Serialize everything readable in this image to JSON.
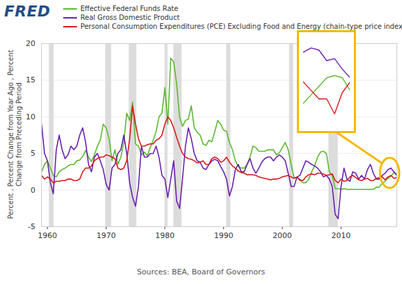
{
  "chart_data": [
    {
      "type": "line",
      "logo": "FRED",
      "ylabel": "Percent , Percent Change from Year Ago , Percent Change from Preceding Period",
      "source": "Sources: BEA, Board of Governors",
      "legend": "top",
      "grid": true,
      "xlim": [
        1959,
        2019.5
      ],
      "xticks": [
        1960,
        1970,
        1980,
        1990,
        2000,
        2010
      ],
      "ylim": [
        -5,
        20
      ],
      "yticks": [
        -5,
        0,
        5,
        10,
        15,
        20
      ],
      "recessions": [
        [
          1960.3,
          1961.1
        ],
        [
          1969.9,
          1970.9
        ],
        [
          1973.9,
          1975.2
        ],
        [
          1980.0,
          1980.5
        ],
        [
          1981.5,
          1982.9
        ],
        [
          1990.5,
          1991.2
        ],
        [
          2001.2,
          2001.9
        ],
        [
          2007.9,
          2009.5
        ]
      ],
      "x": [
        1959,
        1959.5,
        1960,
        1960.5,
        1961,
        1961.5,
        1962,
        1962.5,
        1963,
        1963.5,
        1964,
        1964.5,
        1965,
        1965.5,
        1966,
        1966.5,
        1967,
        1967.5,
        1968,
        1968.5,
        1969,
        1969.5,
        1970,
        1970.5,
        1971,
        1971.5,
        1972,
        1972.5,
        1973,
        1973.5,
        1974,
        1974.5,
        1975,
        1975.5,
        1976,
        1976.5,
        1977,
        1977.5,
        1978,
        1978.5,
        1979,
        1979.5,
        1980,
        1980.5,
        1981,
        1981.5,
        1982,
        1982.5,
        1983,
        1983.5,
        1984,
        1984.5,
        1985,
        1985.5,
        1986,
        1986.5,
        1987,
        1987.5,
        1988,
        1988.5,
        1989,
        1989.5,
        1990,
        1990.5,
        1991,
        1991.5,
        1992,
        1992.5,
        1993,
        1993.5,
        1994,
        1994.5,
        1995,
        1995.5,
        1996,
        1996.5,
        1997,
        1997.5,
        1998,
        1998.5,
        1999,
        1999.5,
        2000,
        2000.5,
        2001,
        2001.5,
        2002,
        2002.5,
        2003,
        2003.5,
        2004,
        2004.5,
        2005,
        2005.5,
        2006,
        2006.5,
        2007,
        2007.5,
        2008,
        2008.5,
        2009,
        2009.5,
        2010,
        2010.5,
        2011,
        2011.5,
        2012,
        2012.5,
        2013,
        2013.5,
        2014,
        2014.5,
        2015,
        2015.5,
        2016,
        2016.5,
        2017,
        2017.5,
        2018,
        2018.5,
        2019,
        2019.5
      ],
      "series": [
        {
          "name": "Effective Federal Funds Rate",
          "color": "#5cb82e",
          "values": [
            2.5,
            3.5,
            4.0,
            3.0,
            2.0,
            1.8,
            2.5,
            2.8,
            3.0,
            3.3,
            3.5,
            3.5,
            4.0,
            4.1,
            4.6,
            5.4,
            4.5,
            3.9,
            4.8,
            6.0,
            6.8,
            9.0,
            8.5,
            7.0,
            4.0,
            5.5,
            3.5,
            4.5,
            6.5,
            10.5,
            9.5,
            12.0,
            6.3,
            6.0,
            4.8,
            5.2,
            4.7,
            5.8,
            6.8,
            8.0,
            10.0,
            10.5,
            14.0,
            9.0,
            18.0,
            17.5,
            14.5,
            10.0,
            8.7,
            9.5,
            9.7,
            11.5,
            8.5,
            7.9,
            7.5,
            6.3,
            6.1,
            6.8,
            6.6,
            8.0,
            9.5,
            9.0,
            8.2,
            8.0,
            6.5,
            5.5,
            4.0,
            3.2,
            3.0,
            3.0,
            3.5,
            4.5,
            6.0,
            5.8,
            5.3,
            5.3,
            5.3,
            5.5,
            5.5,
            5.5,
            4.8,
            5.1,
            5.8,
            6.5,
            5.5,
            3.5,
            1.7,
            1.7,
            1.3,
            1.0,
            1.0,
            1.5,
            2.5,
            3.3,
            4.5,
            5.2,
            5.3,
            5.0,
            2.5,
            2.0,
            0.2,
            0.2,
            0.1,
            0.2,
            0.1,
            0.1,
            0.1,
            0.1,
            0.1,
            0.1,
            0.1,
            0.1,
            0.1,
            0.1,
            0.4,
            0.4,
            0.9,
            1.2,
            1.6,
            1.9,
            2.4,
            2.2
          ]
        },
        {
          "name": "Real Gross Domestic Product",
          "color": "#6a1fb0",
          "values": [
            9.0,
            5.0,
            4.0,
            1.0,
            -0.5,
            5.5,
            7.5,
            5.5,
            4.3,
            4.8,
            6.0,
            5.5,
            6.0,
            7.5,
            8.5,
            6.5,
            3.5,
            2.5,
            4.5,
            5.0,
            4.0,
            2.8,
            0.8,
            0.0,
            3.0,
            3.5,
            5.0,
            5.5,
            7.5,
            5.0,
            1.0,
            -1.0,
            -2.2,
            0.5,
            6.0,
            4.5,
            4.5,
            5.0,
            5.0,
            6.0,
            4.5,
            2.0,
            1.5,
            -1.0,
            1.5,
            4.0,
            -1.5,
            -2.5,
            1.5,
            6.0,
            8.5,
            7.0,
            5.0,
            4.0,
            3.8,
            3.0,
            2.8,
            3.5,
            4.0,
            4.2,
            4.0,
            3.2,
            2.5,
            1.5,
            -0.8,
            0.5,
            2.8,
            3.5,
            2.5,
            2.5,
            3.5,
            4.3,
            3.0,
            2.3,
            3.0,
            3.8,
            4.3,
            4.5,
            4.5,
            4.0,
            4.5,
            4.8,
            4.5,
            4.0,
            2.3,
            0.5,
            0.5,
            1.8,
            2.0,
            3.0,
            4.0,
            3.8,
            3.5,
            3.3,
            3.0,
            2.5,
            1.8,
            2.0,
            1.5,
            0.5,
            -3.3,
            -3.9,
            0.5,
            3.0,
            1.5,
            1.2,
            2.5,
            2.3,
            1.5,
            2.0,
            1.5,
            2.8,
            3.5,
            2.3,
            1.5,
            1.5,
            2.0,
            2.3,
            2.8,
            3.0,
            2.5,
            2.0
          ]
        },
        {
          "name": "Personal Consumption Expenditures (PCE) Excluding Food and Energy (chain-type price index)",
          "color": "#d7191c",
          "values": [
            2.0,
            1.5,
            1.8,
            1.5,
            1.0,
            1.2,
            1.2,
            1.3,
            1.3,
            1.5,
            1.5,
            1.3,
            1.3,
            1.5,
            2.5,
            3.0,
            3.0,
            3.3,
            4.0,
            4.3,
            4.5,
            4.5,
            4.8,
            4.7,
            4.5,
            4.3,
            3.0,
            2.8,
            3.0,
            4.0,
            7.0,
            11.5,
            9.0,
            7.0,
            6.0,
            6.0,
            6.2,
            6.3,
            6.3,
            6.8,
            7.0,
            7.5,
            9.0,
            10.0,
            9.5,
            8.5,
            7.2,
            6.0,
            5.0,
            4.5,
            4.3,
            4.2,
            4.0,
            3.7,
            3.8,
            4.0,
            3.5,
            3.5,
            4.3,
            4.5,
            4.3,
            3.8,
            4.0,
            4.5,
            3.8,
            3.3,
            3.0,
            2.6,
            2.4,
            2.3,
            2.1,
            2.1,
            2.1,
            2.0,
            1.8,
            1.7,
            1.6,
            1.5,
            1.4,
            1.5,
            1.5,
            1.6,
            1.8,
            1.9,
            2.0,
            1.8,
            1.6,
            1.8,
            1.4,
            1.3,
            1.8,
            2.1,
            2.2,
            2.1,
            2.3,
            2.3,
            2.2,
            2.0,
            2.1,
            2.2,
            1.3,
            1.0,
            1.5,
            1.2,
            1.3,
            1.8,
            2.0,
            1.7,
            1.4,
            1.3,
            1.5,
            1.6,
            1.3,
            1.3,
            1.6,
            1.7,
            1.8,
            1.4,
            1.8,
            2.0,
            1.6,
            1.7
          ]
        }
      ]
    },
    {
      "type": "line",
      "tick_labels": false,
      "xlim": [
        2018,
        2019.5
      ],
      "ylim": [
        1.3,
        3.3
      ],
      "x": [
        2018,
        2018.25,
        2018.5,
        2018.75,
        2019,
        2019.25,
        2019.5
      ],
      "series": [
        {
          "name": "Effective Federal Funds Rate",
          "color": "#5cb82e",
          "values": [
            1.8,
            2.0,
            2.2,
            2.4,
            2.45,
            2.4,
            2.1
          ]
        },
        {
          "name": "Real Gross Domestic Product",
          "color": "#6a1fb0",
          "values": [
            3.0,
            3.1,
            3.05,
            2.8,
            2.85,
            2.6,
            2.4
          ]
        },
        {
          "name": "Personal Consumption Expenditures (PCE) Excluding Food and Energy (chain-type price index)",
          "color": "#d7191c",
          "values": [
            2.3,
            2.1,
            1.9,
            1.9,
            1.55,
            2.05,
            2.3
          ]
        }
      ]
    }
  ]
}
